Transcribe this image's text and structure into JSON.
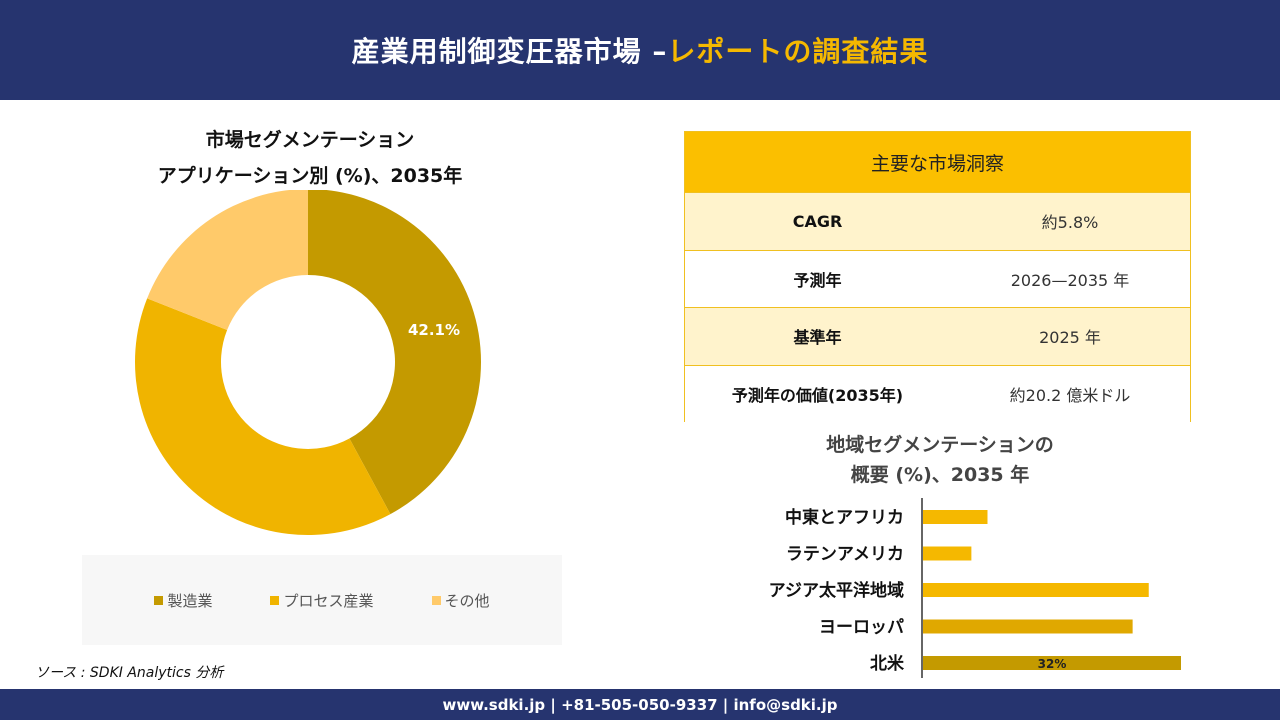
{
  "header": {
    "title_main": "産業用制御変圧器市場 –",
    "title_accent": "レポートの調査結果"
  },
  "pie": {
    "title_line1": "市場セグメンテーション",
    "title_line2": "アプリケーション別 (%)、2035年"
  },
  "insights": {
    "heading": "主要な市場洞察",
    "rows": [
      {
        "key": "CAGR",
        "value": "約5.8%"
      },
      {
        "key": "予測年",
        "value": "2026—2035 年"
      },
      {
        "key": "基準年",
        "value": "2025 年"
      },
      {
        "key": "予測年の価値(2035年)",
        "value": "約20.2 億米ドル"
      }
    ]
  },
  "bar_section": {
    "title_line1": "地域セグメンテーションの",
    "title_line2": "概要 (%)、2035 年"
  },
  "source": "ソース : SDKI Analytics 分析",
  "footer": "www.sdki.jp | +81-505-050-9337 | info@sdki.jp",
  "colors": {
    "header_bg": "#26346f",
    "accent": "#f5b800",
    "manufacturing": "#c49a00",
    "process": "#f0b400",
    "other": "#ffca6a"
  },
  "chart_data": [
    {
      "type": "pie",
      "title": "市場セグメンテーション アプリケーション別 (%)、2035年",
      "donut": true,
      "categories": [
        "製造業",
        "プロセス産業",
        "その他"
      ],
      "values": [
        42.1,
        38.9,
        19.0
      ],
      "data_labels": [
        "42.1%",
        "",
        ""
      ],
      "colors": [
        "#c49a00",
        "#f0b400",
        "#ffca6a"
      ],
      "legend": "bottom"
    },
    {
      "type": "bar",
      "orientation": "horizontal",
      "title": "地域セグメンテーションの 概要 (%)、2035 年",
      "categories": [
        "中東とアフリカ",
        "ラテンアメリカ",
        "アジア太平洋地域",
        "ヨーロッパ",
        "北米"
      ],
      "values": [
        8,
        6,
        28,
        26,
        32
      ],
      "data_labels": [
        "",
        "",
        "",
        "",
        "32%"
      ],
      "colors": [
        "#f5b800",
        "#f5b800",
        "#f5b800",
        "#e0a800",
        "#c49a00"
      ]
    }
  ]
}
